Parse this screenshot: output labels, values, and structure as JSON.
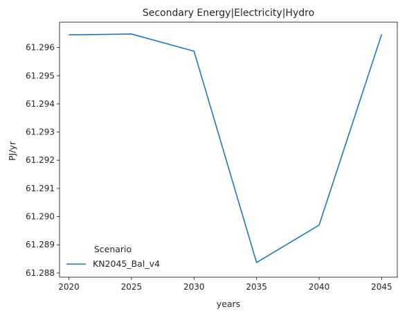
{
  "chart_data": {
    "type": "line",
    "title": "Secondary Energy|Electricity|Hydro",
    "xlabel": "years",
    "ylabel": "PJ/yr",
    "x": [
      2020,
      2025,
      2030,
      2035,
      2040,
      2045
    ],
    "x_ticks": [
      "2020",
      "2025",
      "2030",
      "2035",
      "2040",
      "2045"
    ],
    "y_ticks": [
      "61.288",
      "61.289",
      "61.290",
      "61.291",
      "61.292",
      "61.293",
      "61.294",
      "61.295",
      "61.296"
    ],
    "xlim": [
      2019.25,
      2046.25
    ],
    "ylim": [
      61.28785,
      61.2969
    ],
    "grid": false,
    "legend": {
      "title": "Scenario",
      "placement": "lower-left"
    },
    "series": [
      {
        "name": "KN2045_Bal_v4",
        "color": "#1f77b4",
        "values": [
          61.29645,
          61.29648,
          61.29587,
          61.28837,
          61.2897,
          61.29647
        ]
      }
    ]
  }
}
